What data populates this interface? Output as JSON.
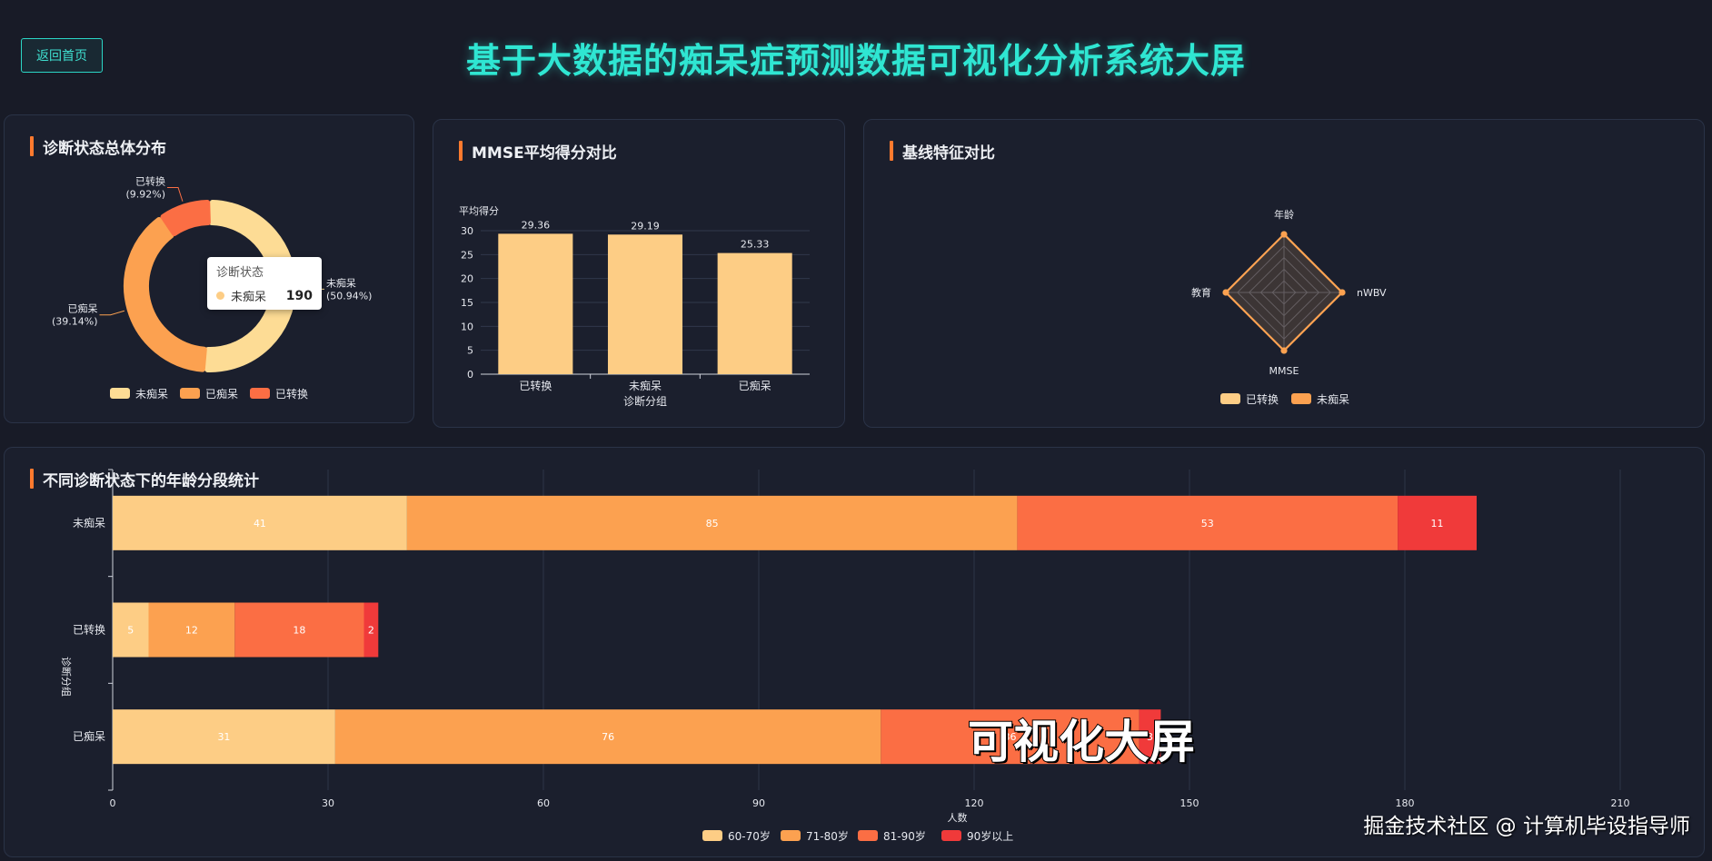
{
  "header": {
    "back_label": "返回首页",
    "title": "基于大数据的痴呆症预测数据可视化分析系统大屏"
  },
  "panels": {
    "donut_title": "诊断状态总体分布",
    "bar_title": "MMSE平均得分对比",
    "radar_title": "基线特征对比",
    "stack_title": "不同诊断状态下的年龄分段统计"
  },
  "tooltip": {
    "title": "诊断状态",
    "label": "未痴呆",
    "value": "190"
  },
  "overlay": {
    "caption": "可视化大屏",
    "credit": "掘金技术社区 @ 计算机毕设指导师"
  },
  "colors": {
    "bg": "#181b27",
    "panel": "#1b1f2d",
    "accent": "#2fe6d2",
    "title_bar": "#ff7a2e",
    "c1": "#fdcd85",
    "c2": "#fca150",
    "c3": "#fb6e44",
    "c4": "#f03a3a"
  },
  "chart_data": [
    {
      "type": "pie",
      "subtype": "donut",
      "slices": [
        {
          "name": "未痴呆",
          "value": 190,
          "percent_label": "(50.94%)",
          "color": "#fddc95"
        },
        {
          "name": "已痴呆",
          "value": 146,
          "percent_label": "(39.14%)",
          "color": "#fca150"
        },
        {
          "name": "已转换",
          "value": 37,
          "percent_label": "(9.92%)",
          "color": "#fb6e44"
        }
      ],
      "legend": [
        "未痴呆",
        "已痴呆",
        "已转换"
      ],
      "legend_position": "bottom"
    },
    {
      "type": "bar",
      "categories": [
        "已转换",
        "未痴呆",
        "已痴呆"
      ],
      "values": [
        29.36,
        29.19,
        25.33
      ],
      "value_labels": [
        "29.36",
        "29.19",
        "25.33"
      ],
      "xlabel": "诊断分组",
      "ylabel": "平均得分",
      "ylim": [
        0,
        30
      ],
      "yticks": [
        "0",
        "5",
        "10",
        "15",
        "20",
        "25",
        "30"
      ],
      "grid": true,
      "color": "#fdcd85"
    },
    {
      "type": "radar",
      "indicators": [
        "年龄",
        "nWBV",
        "MMSE",
        "教育"
      ],
      "series": [
        {
          "name": "已转换",
          "values": [
            1,
            1,
            1,
            1
          ],
          "color": "#fdcd85"
        },
        {
          "name": "未痴呆",
          "values": [
            1,
            1,
            1,
            1
          ],
          "color": "#fca150"
        }
      ],
      "legend_position": "bottom"
    },
    {
      "type": "bar",
      "orientation": "horizontal",
      "stacked": true,
      "categories": [
        "未痴呆",
        "已转换",
        "已痴呆"
      ],
      "series": [
        {
          "name": "60-70岁",
          "values": [
            41,
            5,
            31
          ],
          "labels": [
            "41",
            "5",
            "31"
          ],
          "color": "#fdcd85"
        },
        {
          "name": "71-80岁",
          "values": [
            85,
            12,
            76
          ],
          "labels": [
            "85",
            "12",
            "76"
          ],
          "color": "#fca150"
        },
        {
          "name": "81-90岁",
          "values": [
            53,
            18,
            36
          ],
          "labels": [
            "53",
            "18",
            "36"
          ],
          "color": "#fb6e44"
        },
        {
          "name": "90岁以上",
          "values": [
            11,
            2,
            3
          ],
          "labels": [
            "11",
            "2",
            "3"
          ],
          "color": "#f03a3a"
        }
      ],
      "xlabel": "人数",
      "ylabel": "诊断分组",
      "xlim": [
        0,
        210
      ],
      "xticks": [
        "0",
        "30",
        "60",
        "90",
        "120",
        "150",
        "180",
        "210"
      ],
      "grid": true,
      "legend_position": "bottom"
    }
  ]
}
